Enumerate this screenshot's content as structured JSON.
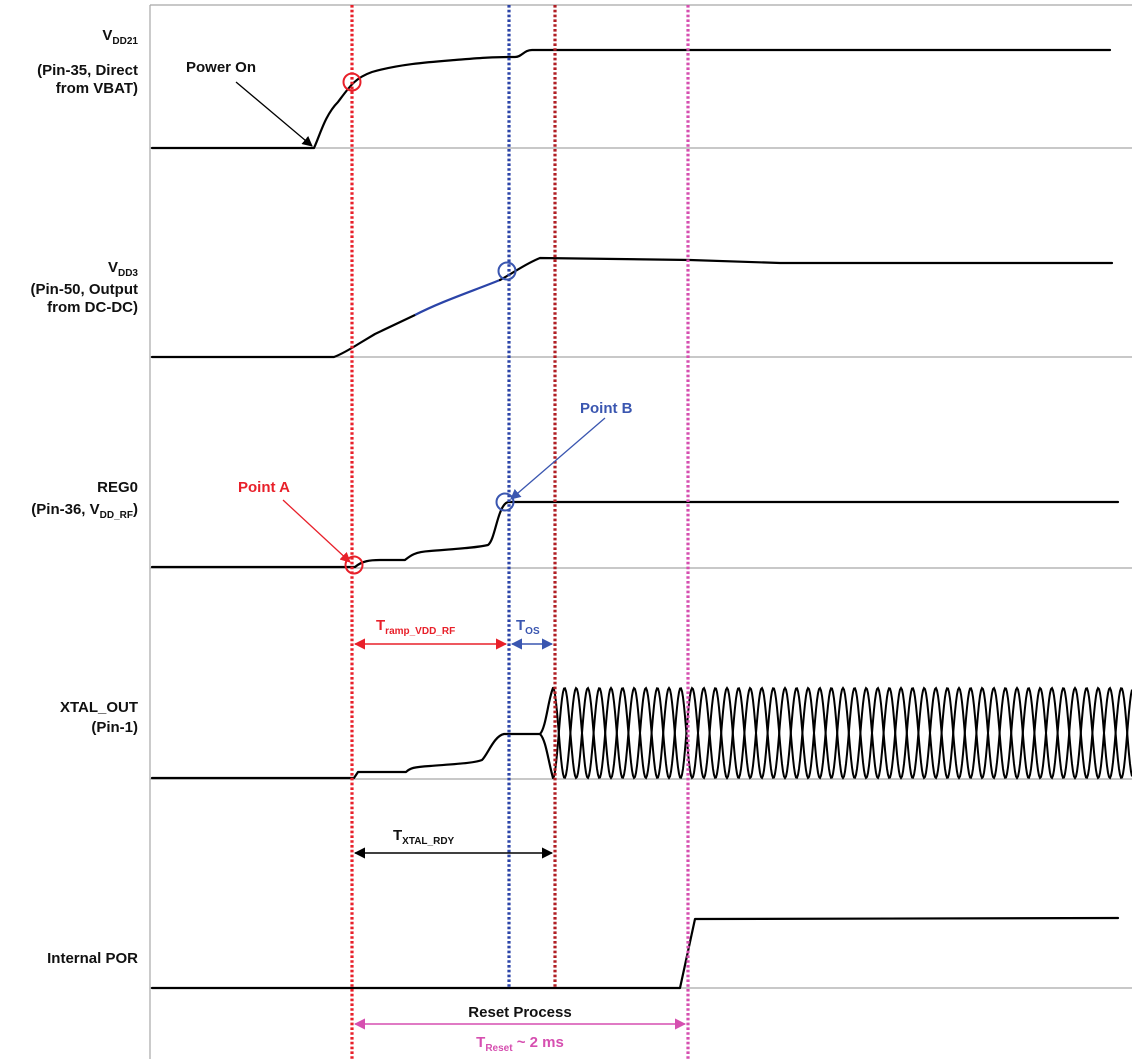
{
  "rows": [
    {
      "id": "vdd21",
      "name_main": "V",
      "name_sub": "DD21",
      "line2": "(Pin-35, Direct",
      "line3": "from VBAT)"
    },
    {
      "id": "vdd3",
      "name_main": "V",
      "name_sub": "DD3",
      "line2": "(Pin-50, Output",
      "line3": "from DC-DC)"
    },
    {
      "id": "reg0",
      "name_main": "REG0",
      "line2_main": "(Pin-36, V",
      "line2_sub": "DD_RF",
      "line2_end": ")"
    },
    {
      "id": "xtal",
      "name_main": "XTAL_OUT",
      "line2": "(Pin-1)"
    },
    {
      "id": "por",
      "name_main": "Internal POR"
    }
  ],
  "annotations": {
    "power_on": "Power On",
    "point_a": "Point A",
    "point_b": "Point B",
    "tramp_main": "T",
    "tramp_sub": "ramp_VDD_RF",
    "tos_main": "T",
    "tos_sub": "OS",
    "txtal_main": "T",
    "txtal_sub": "XTAL_RDY",
    "reset_process": "Reset Process",
    "treset_main": "T",
    "treset_sub": "Reset",
    "treset_value": " ~ 2 ms"
  },
  "colors": {
    "red_marker": "#e8202a",
    "blue_marker": "#2b44a8",
    "darkred_marker": "#b01e24",
    "magenta_marker": "#d64fb0",
    "point_a": "#e8202a",
    "point_b": "#3a56b0",
    "signal": "#000000",
    "separator": "#a8a8a8"
  }
}
